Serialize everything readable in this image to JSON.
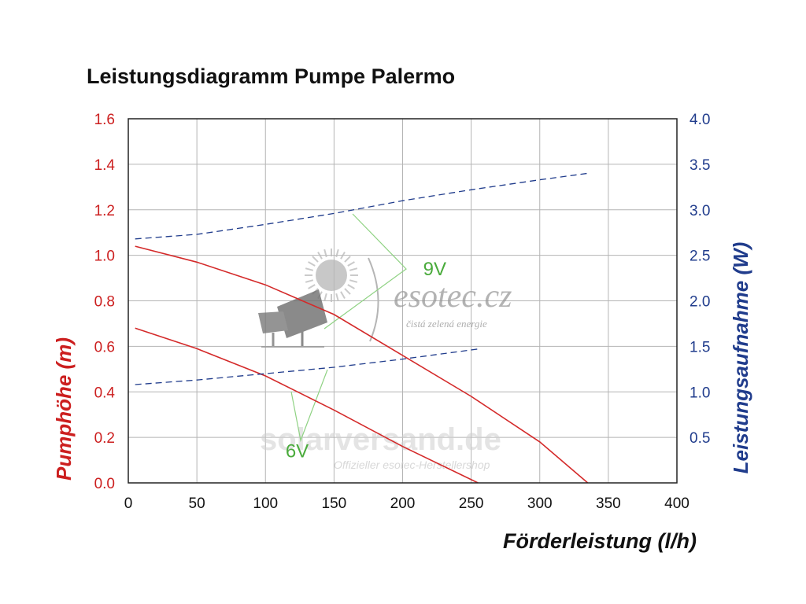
{
  "chart_data": {
    "type": "line",
    "title": "Leistungsdiagramm Pumpe Palermo",
    "xlabel": "Förderleistung (l/h)",
    "ylabel_left": "Pumphöhe (m)",
    "ylabel_right": "Leistungsaufnahme (W)",
    "xlim": [
      0,
      400
    ],
    "ylim_left": [
      0,
      1.6
    ],
    "ylim_right": [
      0,
      4.0
    ],
    "x_ticks": [
      "0",
      "50",
      "100",
      "150",
      "200",
      "250",
      "300",
      "350",
      "400"
    ],
    "y_left_ticks": [
      "0.0",
      "0.2",
      "0.4",
      "0.6",
      "0.8",
      "1.0",
      "1.2",
      "1.4",
      "1.6"
    ],
    "y_right_ticks": [
      "0.5",
      "1.0",
      "1.5",
      "2.0",
      "2.5",
      "3.0",
      "3.5",
      "4.0"
    ],
    "grid": true,
    "series": [
      {
        "axis": "left",
        "style": "solid",
        "color": "#d42a2a",
        "x": [
          5,
          50,
          100,
          150,
          200,
          250,
          300,
          335
        ],
        "y": [
          1.04,
          0.97,
          0.87,
          0.74,
          0.56,
          0.38,
          0.18,
          0.0
        ]
      },
      {
        "axis": "left",
        "style": "solid",
        "color": "#d42a2a",
        "x": [
          5,
          50,
          100,
          150,
          200,
          255
        ],
        "y": [
          0.68,
          0.59,
          0.47,
          0.32,
          0.16,
          0.0
        ]
      },
      {
        "axis": "right",
        "style": "dashed",
        "color": "#203c8c",
        "x": [
          5,
          50,
          100,
          150,
          200,
          250,
          300,
          335
        ],
        "y": [
          2.68,
          2.73,
          2.84,
          2.96,
          3.1,
          3.22,
          3.33,
          3.4
        ]
      },
      {
        "axis": "right",
        "style": "dashed",
        "color": "#203c8c",
        "x": [
          5,
          50,
          100,
          150,
          200,
          255
        ],
        "y": [
          1.08,
          1.13,
          1.2,
          1.27,
          1.36,
          1.47
        ]
      }
    ],
    "annotations": [
      {
        "text": "9V",
        "x": 215,
        "y_left": 0.94
      },
      {
        "text": "6V",
        "x": 125,
        "y_left": 0.14
      }
    ]
  },
  "watermark": {
    "brand": "esotec.cz",
    "tagline": "čistá zelená energie",
    "site": "solarversand.de",
    "site_sub": "Offizieller esotec-Herstellershop"
  },
  "colors": {
    "left_axis": "#cc1f1f",
    "right_axis": "#203c8c",
    "annotation": "#4aab3c"
  }
}
